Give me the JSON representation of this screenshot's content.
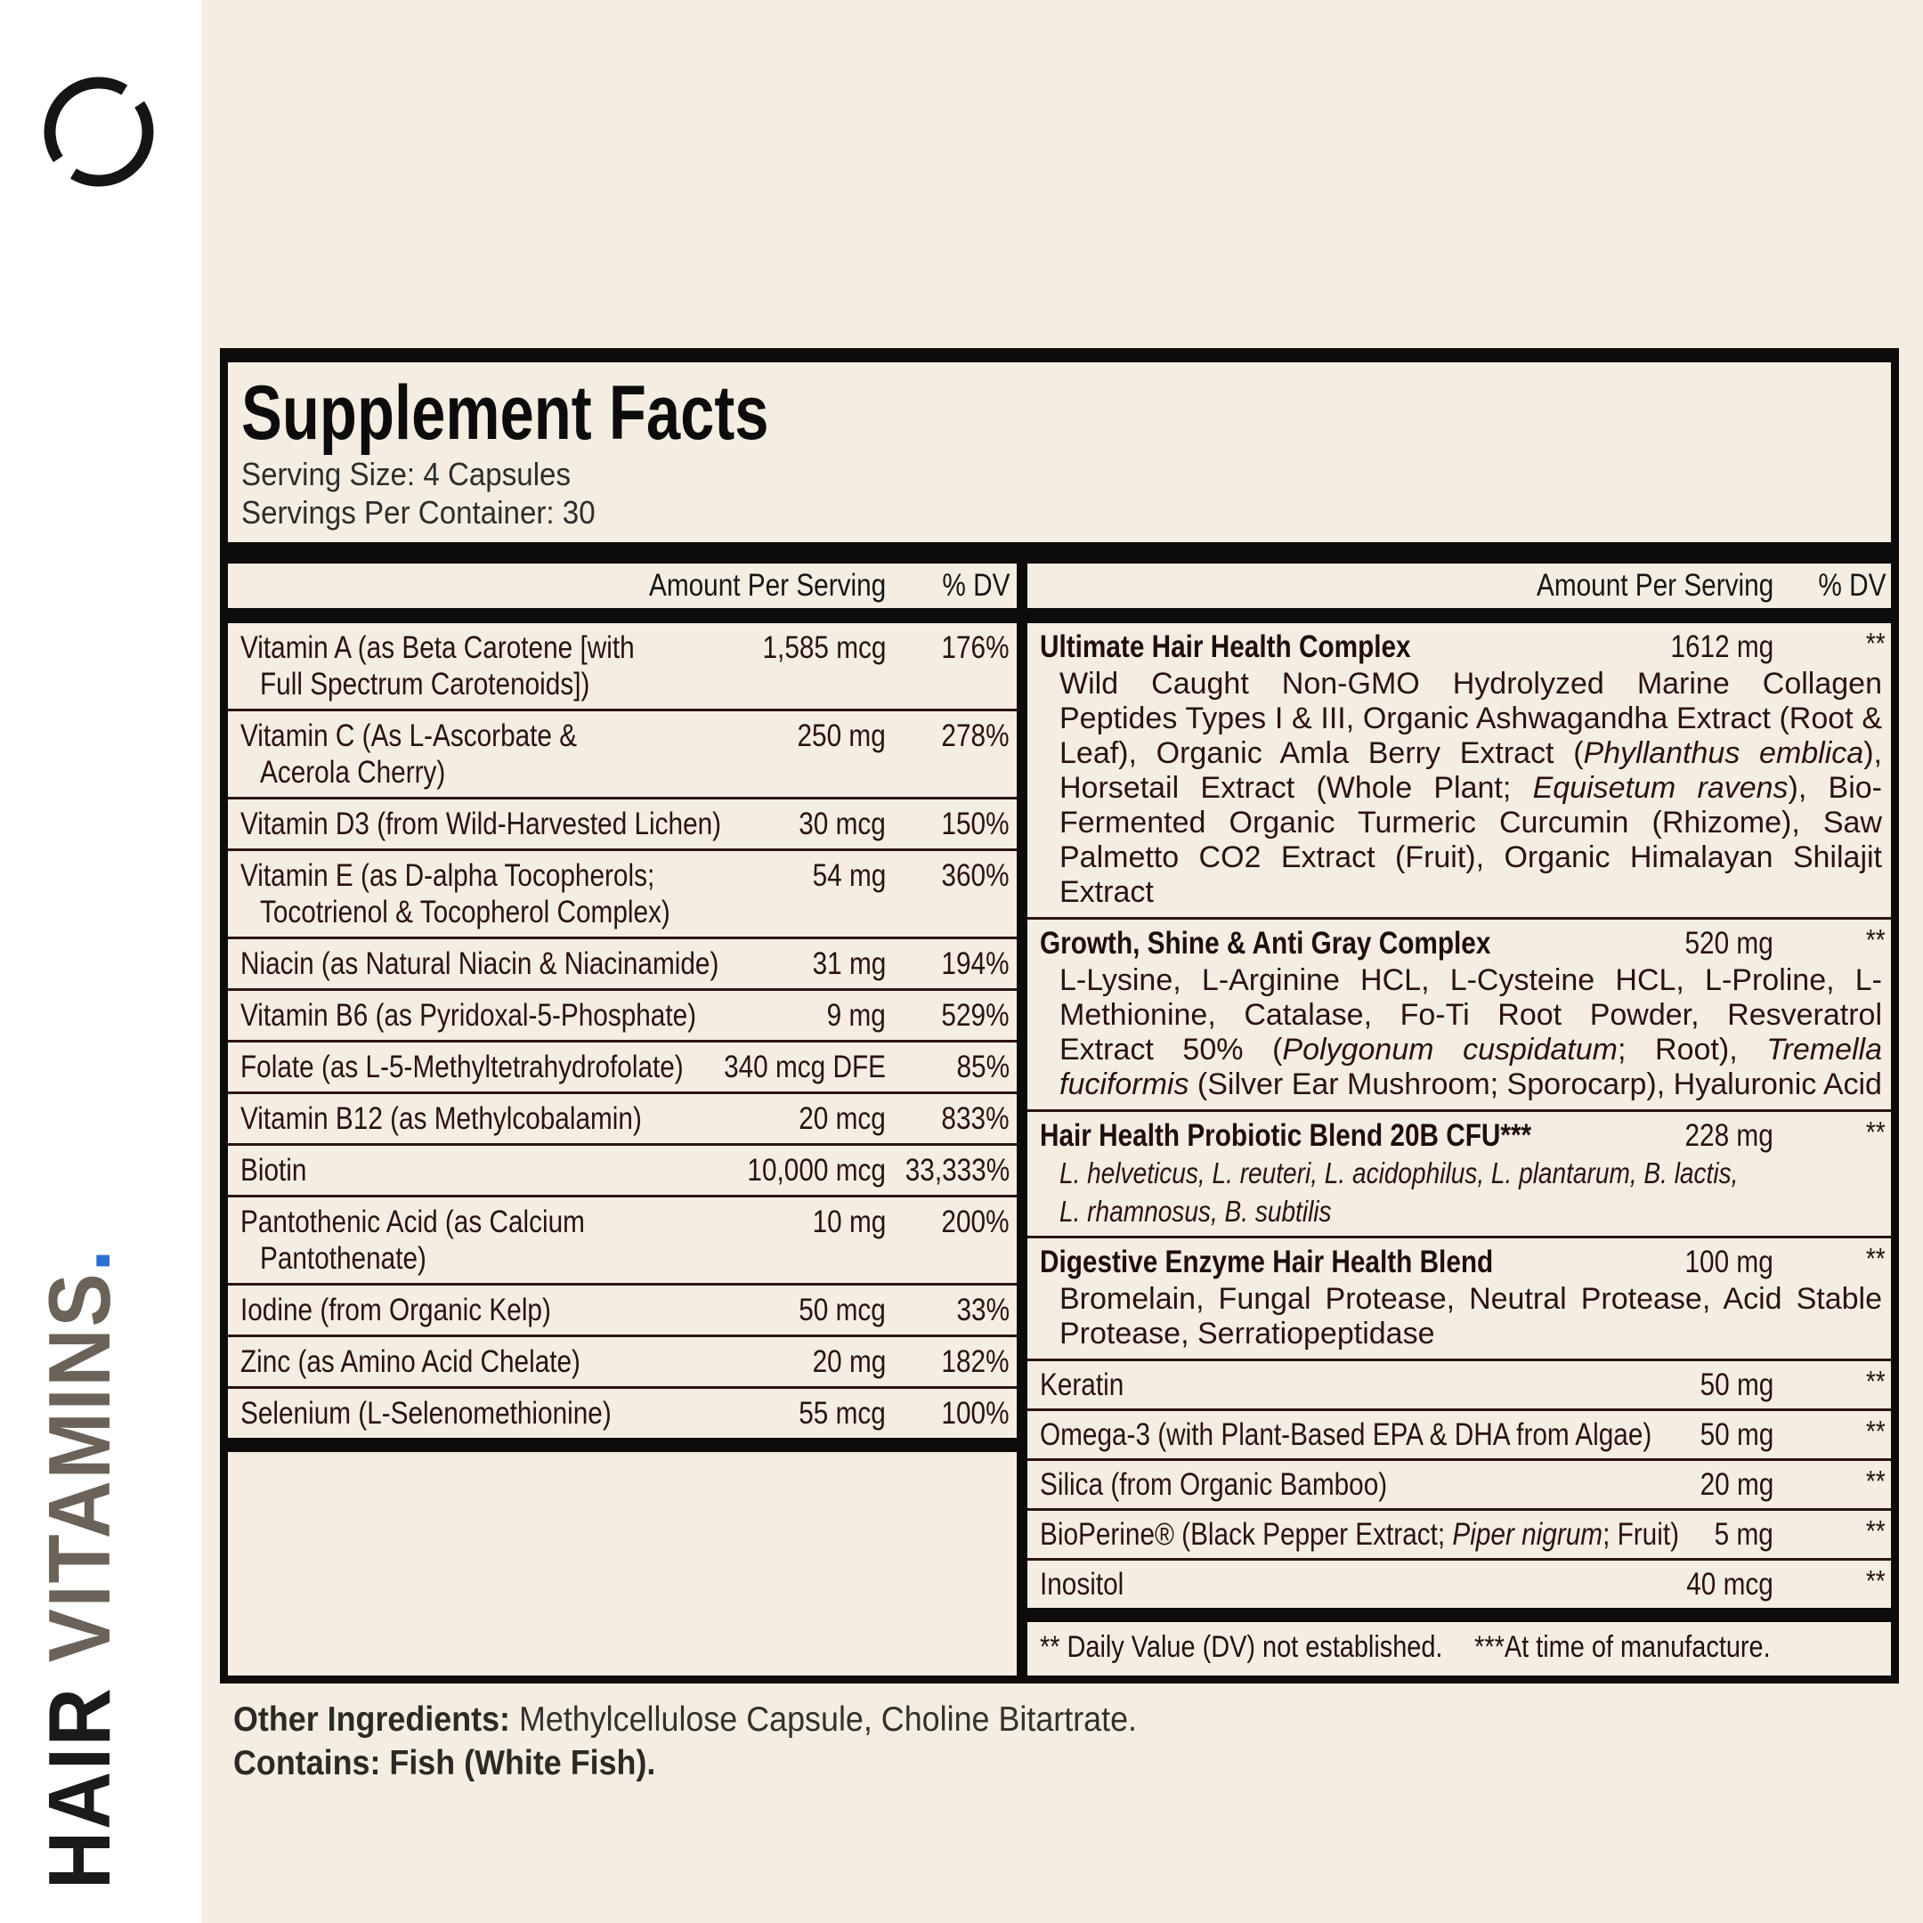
{
  "sidebar": {
    "brand": {
      "word1": "HAIR",
      "word2": "VITAMINS",
      "dot": ".",
      "word1_color": "#1b1b1b",
      "word2_color": "#6b635a",
      "dot_color": "#2e6fd2",
      "logo_icon": "broken-circle-logo",
      "logo_color": "#151515"
    },
    "background_color": "#ffffff"
  },
  "page_background_color": "#f4eee2",
  "panel": {
    "title": "Supplement Facts",
    "serving_size": "Serving Size: 4 Capsules",
    "servings_per_container": "Servings Per Container: 30",
    "left_header": {
      "amount": "Amount Per Serving",
      "dv": "% DV"
    },
    "right_header": {
      "amount": "Amount Per Serving",
      "dv": "% DV"
    },
    "left_rows": [
      {
        "name_lines": [
          "Vitamin A (as Beta Carotene [with",
          "Full Spectrum Carotenoids])"
        ],
        "amount": "1,585 mcg",
        "dv": "176%"
      },
      {
        "name_lines": [
          "Vitamin C (As L-Ascorbate &",
          "Acerola Cherry)"
        ],
        "amount": "250 mg",
        "dv": "278%"
      },
      {
        "name_lines": [
          "Vitamin D3 (from Wild-Harvested Lichen)"
        ],
        "amount": "30 mcg",
        "dv": "150%"
      },
      {
        "name_lines": [
          "Vitamin E (as D-alpha Tocopherols;",
          "Tocotrienol & Tocopherol Complex)"
        ],
        "amount": "54 mg",
        "dv": "360%"
      },
      {
        "name_lines": [
          "Niacin (as Natural Niacin & Niacinamide)"
        ],
        "amount": "31 mg",
        "dv": "194%"
      },
      {
        "name_lines": [
          "Vitamin B6 (as Pyridoxal-5-Phosphate)"
        ],
        "amount": "9 mg",
        "dv": "529%"
      },
      {
        "name_lines": [
          "Folate (as L-5-Methyltetrahydrofolate)"
        ],
        "amount": "340 mcg DFE",
        "dv": "85%"
      },
      {
        "name_lines": [
          "Vitamin B12 (as Methylcobalamin)"
        ],
        "amount": "20 mcg",
        "dv": "833%"
      },
      {
        "name_lines": [
          "Biotin"
        ],
        "amount": "10,000 mcg",
        "dv": "33,333%"
      },
      {
        "name_lines": [
          "Pantothenic Acid (as Calcium",
          "Pantothenate)"
        ],
        "amount": "10 mg",
        "dv": "200%"
      },
      {
        "name_lines": [
          "Iodine (from Organic Kelp)"
        ],
        "amount": "50 mcg",
        "dv": "33%"
      },
      {
        "name_lines": [
          "Zinc (as Amino Acid Chelate)"
        ],
        "amount": "20 mg",
        "dv": "182%"
      },
      {
        "name_lines": [
          "Selenium (L-Selenomethionine)"
        ],
        "amount": "55 mcg",
        "dv": "100%"
      }
    ],
    "right_rows": [
      {
        "title_segments": [
          [
            "Ultimate Hair Health Complex",
            0
          ]
        ],
        "bold_title": true,
        "amount": "1612 mg",
        "dv": "**",
        "desc_justify": true,
        "desc_paragraphs": [
          [
            [
              "Wild Caught Non-GMO Hydrolyzed Marine Collagen Peptides Types I & III, Organic Ashwagandha Extract (Root & Leaf), Organic Amla Berry Extract (",
              0
            ],
            [
              "Phyllanthus emblica",
              1
            ],
            [
              "), Horsetail Extract (Whole Plant; ",
              0
            ],
            [
              "Equisetum ravens",
              1
            ],
            [
              "), Bio-Fermented Organic Turmeric Curcumin (Rhizome), Saw Palmetto CO2 Extract (Fruit), Organic Himalayan Shilajit Extract",
              0
            ]
          ]
        ]
      },
      {
        "title_segments": [
          [
            "Growth, Shine & Anti Gray Complex",
            0
          ]
        ],
        "bold_title": true,
        "amount": "520 mg",
        "dv": "**",
        "desc_justify": true,
        "desc_paragraphs": [
          [
            [
              "L-Lysine, L-Arginine HCL, L-Cysteine HCL, L-Proline, L-Methionine, Catalase, Fo-Ti Root Powder, Resveratrol  Extract 50% (",
              0
            ],
            [
              "Polygonum cuspidatum",
              1
            ],
            [
              "; Root), ",
              0
            ],
            [
              "Tremella fuciformis",
              1
            ],
            [
              " (Silver Ear Mushroom; Sporocarp), Hyaluronic Acid",
              0
            ]
          ]
        ]
      },
      {
        "title_segments": [
          [
            "Hair Health Probiotic Blend 20B CFU***",
            0
          ]
        ],
        "bold_title": true,
        "amount": "228 mg",
        "dv": "**",
        "desc_justify": false,
        "desc_paragraphs": [
          [
            [
              "L. helveticus, L. reuteri, L. acidophilus, L. plantarum, B. lactis,",
              1
            ]
          ],
          [
            [
              "L. rhamnosus, B. subtilis",
              1
            ]
          ]
        ]
      },
      {
        "title_segments": [
          [
            "Digestive Enzyme Hair Health Blend",
            0
          ]
        ],
        "bold_title": true,
        "amount": "100 mg",
        "dv": "**",
        "desc_justify": true,
        "desc_paragraphs": [
          [
            [
              "Bromelain, Fungal Protease, Neutral Protease, Acid Stable Protease, Serratiopeptidase",
              0
            ]
          ]
        ]
      },
      {
        "title_segments": [
          [
            "Keratin",
            0
          ]
        ],
        "bold_title": false,
        "amount": "50 mg",
        "dv": "**",
        "desc_paragraphs": []
      },
      {
        "title_segments": [
          [
            "Omega-3 (with Plant-Based EPA & DHA from Algae)",
            0
          ]
        ],
        "bold_title": false,
        "amount": "50 mg",
        "dv": "**",
        "desc_paragraphs": []
      },
      {
        "title_segments": [
          [
            "Silica (from Organic Bamboo)",
            0
          ]
        ],
        "bold_title": false,
        "amount": "20 mg",
        "dv": "**",
        "desc_paragraphs": []
      },
      {
        "title_segments": [
          [
            "BioPerine® (Black Pepper Extract; ",
            0
          ],
          [
            "Piper nigrum",
            1
          ],
          [
            "; Fruit)",
            0
          ]
        ],
        "bold_title": false,
        "amount": "5 mg",
        "dv": "**",
        "desc_paragraphs": []
      },
      {
        "title_segments": [
          [
            "Inositol",
            0
          ]
        ],
        "bold_title": false,
        "amount": "40 mcg",
        "dv": "**",
        "desc_paragraphs": []
      }
    ],
    "footnote_dv": "** Daily Value (DV) not established.",
    "footnote_mfg": "***At time of manufacture."
  },
  "below": {
    "other_label": "Other Ingredients:",
    "other_text": " Methylcellulose Capsule, Choline Bitartrate.",
    "contains": "Contains: Fish (White Fish)."
  }
}
